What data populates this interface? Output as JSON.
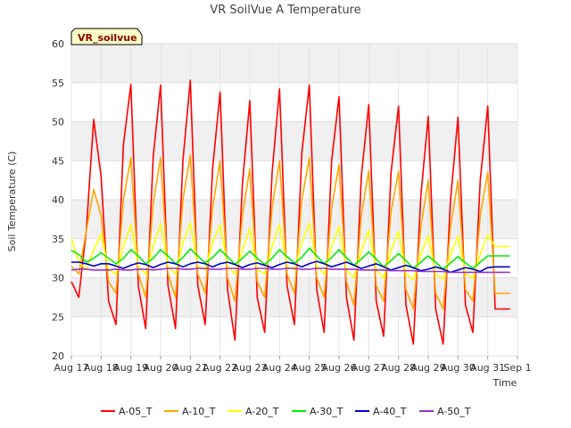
{
  "chart_data": {
    "type": "line",
    "title": "VR SoilVue A Temperature",
    "xlabel": "Time",
    "ylabel": "Soil Temperature (C)",
    "site_badge": "VR_soilvue",
    "ylim": [
      20,
      60
    ],
    "yticks": [
      "20",
      "25",
      "30",
      "35",
      "40",
      "45",
      "50",
      "55",
      "60"
    ],
    "xlim": [
      17,
      32
    ],
    "xticks": [
      "Aug 17",
      "Aug 18",
      "Aug 19",
      "Aug 20",
      "Aug 21",
      "Aug 22",
      "Aug 23",
      "Aug 24",
      "Aug 25",
      "Aug 26",
      "Aug 27",
      "Aug 28",
      "Aug 29",
      "Aug 30",
      "Aug 31",
      "Sep 1"
    ],
    "grid": true,
    "legend_position": "bottom",
    "x_day_offsets": [
      0,
      0.25,
      0.5,
      0.75
    ],
    "x_days": [
      17,
      18,
      19,
      20,
      21,
      22,
      23,
      24,
      25,
      26,
      27,
      28,
      29,
      30,
      31,
      32
    ],
    "series": [
      {
        "name": "A-05_T",
        "color": "#ff0000",
        "values": [
          [
            29.5,
            27.5,
            36.0,
            50.3
          ],
          [
            43.0,
            27.0,
            24.0,
            47.0
          ],
          [
            54.8,
            29.0,
            23.5,
            45.5
          ],
          [
            54.7,
            29.0,
            23.5,
            45.0
          ],
          [
            55.3,
            29.0,
            24.0,
            44.0
          ],
          [
            53.8,
            28.5,
            22.0,
            42.0
          ],
          [
            52.7,
            27.5,
            23.0,
            43.5
          ],
          [
            54.2,
            29.0,
            24.0,
            46.0
          ],
          [
            54.7,
            28.5,
            23.0,
            45.0
          ],
          [
            53.2,
            27.5,
            22.0,
            43.0
          ],
          [
            52.2,
            27.0,
            22.5,
            43.5
          ],
          [
            52.0,
            26.5,
            21.5,
            40.5
          ],
          [
            50.7,
            26.0,
            21.5,
            40.0
          ],
          [
            50.6,
            26.5,
            23.0,
            42.5
          ],
          [
            52.0,
            26.0,
            26.0,
            26.0
          ]
        ]
      },
      {
        "name": "A-10_T",
        "color": "#ffa500",
        "values": [
          [
            31.5,
            30.5,
            36.0,
            41.3
          ],
          [
            38.0,
            29.5,
            28.0,
            40.0
          ],
          [
            45.4,
            30.5,
            27.5,
            39.5
          ],
          [
            45.4,
            30.5,
            27.5,
            40.0
          ],
          [
            45.7,
            30.5,
            28.0,
            39.0
          ],
          [
            45.0,
            30.0,
            27.0,
            38.0
          ],
          [
            44.0,
            29.5,
            27.5,
            39.0
          ],
          [
            45.0,
            30.5,
            28.0,
            40.0
          ],
          [
            45.4,
            30.0,
            27.5,
            39.0
          ],
          [
            44.5,
            29.5,
            26.5,
            38.0
          ],
          [
            43.7,
            29.0,
            27.0,
            38.5
          ],
          [
            43.6,
            28.5,
            26.0,
            36.5
          ],
          [
            42.5,
            28.0,
            26.0,
            36.5
          ],
          [
            42.5,
            28.5,
            27.0,
            38.0
          ],
          [
            43.5,
            28.0,
            28.0,
            28.0
          ]
        ]
      },
      {
        "name": "A-20_T",
        "color": "#ffff00",
        "values": [
          [
            35.0,
            32.0,
            31.0,
            33.5
          ],
          [
            35.6,
            31.0,
            30.5,
            34.0
          ],
          [
            36.8,
            31.5,
            30.5,
            34.0
          ],
          [
            36.9,
            31.5,
            30.5,
            34.5
          ],
          [
            37.0,
            31.5,
            31.0,
            34.5
          ],
          [
            36.8,
            31.5,
            30.5,
            33.5
          ],
          [
            36.3,
            31.0,
            30.5,
            34.0
          ],
          [
            36.8,
            31.5,
            31.0,
            34.5
          ],
          [
            37.0,
            31.5,
            30.5,
            34.0
          ],
          [
            36.6,
            31.0,
            30.0,
            33.5
          ],
          [
            36.1,
            31.0,
            30.0,
            33.5
          ],
          [
            35.9,
            30.5,
            29.8,
            33.0
          ],
          [
            35.4,
            30.5,
            29.8,
            33.0
          ],
          [
            35.3,
            30.5,
            30.0,
            33.0
          ],
          [
            35.5,
            34.0,
            34.0,
            34.0
          ]
        ]
      },
      {
        "name": "A-30_T",
        "color": "#00ee00",
        "values": [
          [
            33.5,
            33.0,
            32.0,
            32.5
          ],
          [
            33.2,
            32.5,
            31.8,
            32.5
          ],
          [
            33.6,
            32.8,
            31.8,
            32.5
          ],
          [
            33.6,
            32.8,
            31.8,
            32.6
          ],
          [
            33.7,
            32.8,
            31.9,
            32.6
          ],
          [
            33.6,
            32.7,
            31.7,
            32.5
          ],
          [
            33.4,
            32.5,
            31.7,
            32.5
          ],
          [
            33.6,
            32.7,
            31.9,
            32.6
          ],
          [
            33.8,
            32.8,
            31.8,
            32.6
          ],
          [
            33.6,
            32.6,
            31.6,
            32.4
          ],
          [
            33.3,
            32.4,
            31.4,
            32.2
          ],
          [
            33.1,
            32.2,
            31.2,
            32.0
          ],
          [
            32.8,
            32.0,
            31.1,
            31.9
          ],
          [
            32.7,
            31.9,
            31.2,
            32.0
          ],
          [
            32.8,
            32.8,
            32.8,
            32.8
          ]
        ]
      },
      {
        "name": "A-40_T",
        "color": "#0000cc",
        "values": [
          [
            32.0,
            32.0,
            31.8,
            31.5
          ],
          [
            31.8,
            31.8,
            31.5,
            31.2
          ],
          [
            31.6,
            31.9,
            31.7,
            31.3
          ],
          [
            31.7,
            32.0,
            31.8,
            31.4
          ],
          [
            31.8,
            32.0,
            31.8,
            31.4
          ],
          [
            31.8,
            32.0,
            31.7,
            31.3
          ],
          [
            31.7,
            31.9,
            31.6,
            31.3
          ],
          [
            31.7,
            32.0,
            31.8,
            31.4
          ],
          [
            31.8,
            32.1,
            31.8,
            31.4
          ],
          [
            31.7,
            32.0,
            31.6,
            31.2
          ],
          [
            31.5,
            31.8,
            31.4,
            31.0
          ],
          [
            31.3,
            31.6,
            31.3,
            30.9
          ],
          [
            31.1,
            31.4,
            31.1,
            30.7
          ],
          [
            31.0,
            31.3,
            31.1,
            30.8
          ],
          [
            31.3,
            31.4,
            31.4,
            31.4
          ]
        ]
      },
      {
        "name": "A-50_T",
        "color": "#9932cc",
        "values": [
          [
            31.0,
            31.1,
            31.1,
            31.0
          ],
          [
            31.0,
            31.0,
            31.1,
            31.0
          ],
          [
            31.0,
            31.1,
            31.1,
            31.0
          ],
          [
            31.1,
            31.2,
            31.2,
            31.1
          ],
          [
            31.1,
            31.2,
            31.2,
            31.1
          ],
          [
            31.1,
            31.2,
            31.2,
            31.1
          ],
          [
            31.1,
            31.2,
            31.2,
            31.1
          ],
          [
            31.1,
            31.2,
            31.2,
            31.1
          ],
          [
            31.1,
            31.2,
            31.2,
            31.1
          ],
          [
            31.1,
            31.1,
            31.1,
            31.0
          ],
          [
            31.0,
            31.0,
            31.0,
            30.9
          ],
          [
            30.9,
            30.9,
            30.9,
            30.8
          ],
          [
            30.8,
            30.8,
            30.8,
            30.7
          ],
          [
            30.7,
            30.7,
            30.7,
            30.7
          ],
          [
            30.7,
            30.7,
            30.7,
            30.7
          ]
        ]
      }
    ]
  }
}
